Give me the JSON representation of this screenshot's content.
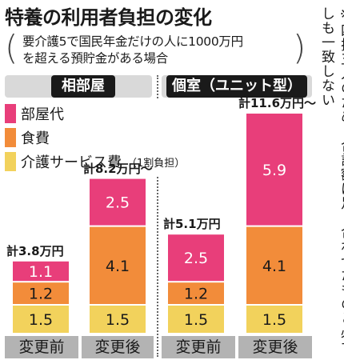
{
  "title": "特養の利用者負担の変化",
  "subtitle_line1": "要介護5で国民年金だけの人に1000万円",
  "subtitle_line2": "を超える預貯金がある場合",
  "note": "※四捨五入のため、合計額は足し合わせたものと必ずしも一致しない",
  "panels": [
    {
      "label": "相部屋"
    },
    {
      "label": "個室（ユニット型）"
    }
  ],
  "legend": [
    {
      "label": "部屋代",
      "color": "#e83e7a"
    },
    {
      "label": "食費",
      "color": "#f28c3a"
    },
    {
      "label": "介護サービス費",
      "note": "（1割負担）",
      "color": "#f2d25c"
    }
  ],
  "xlabels": {
    "before": "変更前",
    "after": "変更後"
  },
  "chart_data": {
    "type": "bar",
    "stacked": true,
    "groups": [
      "相部屋",
      "個室（ユニット型）"
    ],
    "categories": [
      "変更前",
      "変更後",
      "変更前",
      "変更後"
    ],
    "series": [
      {
        "name": "介護サービス費",
        "values": [
          1.5,
          1.5,
          1.5,
          1.5
        ],
        "labels": [
          "1.5",
          "1.5",
          "1.5",
          "1.5"
        ]
      },
      {
        "name": "食費",
        "values": [
          1.2,
          4.1,
          1.2,
          4.1
        ],
        "labels": [
          "1.2",
          "4.1",
          "1.2",
          "4.1"
        ]
      },
      {
        "name": "部屋代",
        "values": [
          1.1,
          2.5,
          2.5,
          5.9
        ],
        "labels": [
          "1.1",
          "2.5",
          "2.5",
          "5.9"
        ]
      }
    ],
    "totals": [
      "計3.8万円",
      "計8.2万円～",
      "計5.1万円",
      "計11.6万円～"
    ],
    "colors": [
      "#f2d25c",
      "#f28c3a",
      "#e83e7a"
    ]
  }
}
